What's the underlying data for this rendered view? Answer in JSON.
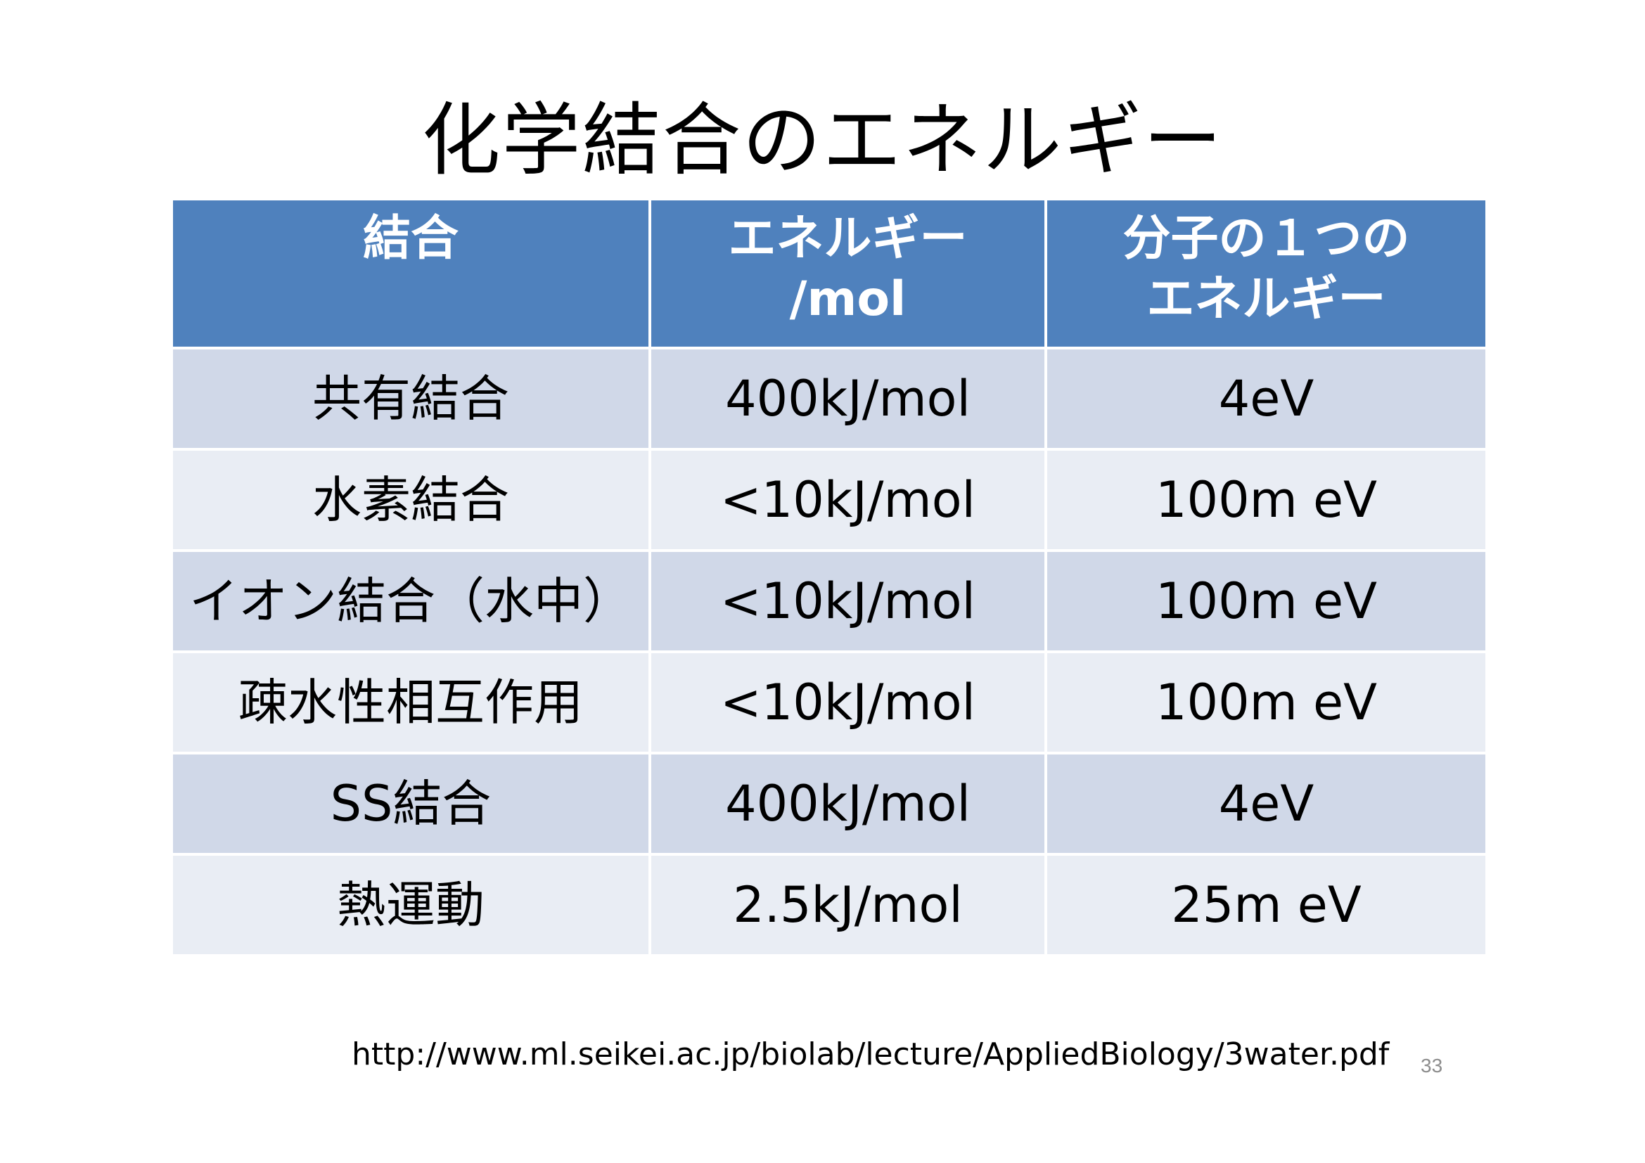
{
  "slide": {
    "title": "化学結合のエネルギー",
    "source_url": "http://www.ml.seikei.ac.jp/biolab/lecture/AppliedBiology/3water.pdf",
    "page_number": "33"
  },
  "table": {
    "headers": [
      {
        "line1": "結合",
        "line2": ""
      },
      {
        "line1": "エネルギー",
        "line2": "/mol"
      },
      {
        "line1": "分子の１つの",
        "line2": "エネルギー"
      }
    ],
    "rows": [
      {
        "bond": "共有結合",
        "energy_per_mol": "400kJ/mol",
        "energy_per_molecule": "4eV"
      },
      {
        "bond": "水素結合",
        "energy_per_mol": "<10kJ/mol",
        "energy_per_molecule": "100m eV"
      },
      {
        "bond": "イオン結合（水中）",
        "energy_per_mol": "<10kJ/mol",
        "energy_per_molecule": "100m eV"
      },
      {
        "bond": "疎水性相互作用",
        "energy_per_mol": "<10kJ/mol",
        "energy_per_molecule": "100m eV"
      },
      {
        "bond": "SS結合",
        "energy_per_mol": "400kJ/mol",
        "energy_per_molecule": "4eV"
      },
      {
        "bond": "熱運動",
        "energy_per_mol": "2.5kJ/mol",
        "energy_per_molecule": "25m eV"
      }
    ]
  },
  "colors": {
    "header_background": "#4f81bd",
    "row_odd_background": "#d0d8e8",
    "row_even_background": "#e9edf4",
    "header_text": "#ffffff",
    "page_number_text": "#8c8c8c"
  }
}
